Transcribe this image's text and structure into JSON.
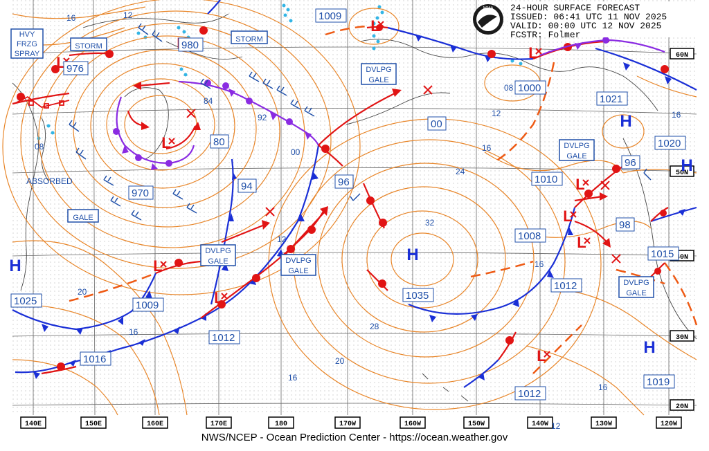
{
  "header": {
    "title": "24-HOUR SURFACE FORECAST",
    "issued": "ISSUED: 06:41 UTC 11 NOV 2025",
    "valid": "VALID:  00:00 UTC 12 NOV 2025",
    "forecaster": "FCSTR:  Folmer",
    "logo_text": "NOAA"
  },
  "footer": "NWS/NCEP - Ocean Prediction Center - https://ocean.weather.gov",
  "longitudes": [
    "140E",
    "150E",
    "160E",
    "170E",
    "180",
    "170W",
    "160W",
    "150W",
    "140W",
    "130W",
    "120W"
  ],
  "latitudes": [
    "60N",
    "50N",
    "40N",
    "30N",
    "20N"
  ],
  "warnings": [
    {
      "id": "hvy-frzg-spray",
      "lines": [
        "HVY",
        "FRZG",
        "SPRAY"
      ]
    },
    {
      "id": "storm-west",
      "lines": [
        "STORM"
      ]
    },
    {
      "id": "storm-central",
      "lines": [
        "STORM"
      ]
    },
    {
      "id": "gale-west",
      "lines": [
        "GALE"
      ]
    },
    {
      "id": "dvlpg-gale-1",
      "lines": [
        "DVLPG",
        "GALE"
      ]
    },
    {
      "id": "dvlpg-gale-2",
      "lines": [
        "DVLPG",
        "GALE"
      ]
    },
    {
      "id": "dvlpg-gale-3",
      "lines": [
        "DVLPG",
        "GALE"
      ]
    },
    {
      "id": "dvlpg-gale-4",
      "lines": [
        "DVLPG",
        "GALE"
      ]
    },
    {
      "id": "dvlpg-gale-5",
      "lines": [
        "DVLPG",
        "GALE"
      ]
    }
  ],
  "absorbed_text": "ABSORBED",
  "pressure_centers": [
    {
      "type": "H",
      "value": "1025"
    },
    {
      "type": "H",
      "value": "1016"
    },
    {
      "type": "H",
      "value": "1035"
    },
    {
      "type": "H",
      "value": "1021"
    },
    {
      "type": "H",
      "value": "1020"
    },
    {
      "type": "H",
      "value": "1019"
    },
    {
      "type": "L",
      "value": "976"
    },
    {
      "type": "L",
      "value": "980"
    },
    {
      "type": "L",
      "value": "970"
    },
    {
      "type": "L",
      "value": "80"
    },
    {
      "type": "L",
      "value": "1009"
    },
    {
      "type": "L",
      "value": "1009"
    },
    {
      "type": "L",
      "value": "1012"
    },
    {
      "type": "L",
      "value": "1012"
    },
    {
      "type": "L",
      "value": "94"
    },
    {
      "type": "L",
      "value": "96"
    },
    {
      "type": "L",
      "value": "00"
    },
    {
      "type": "L",
      "value": "1000"
    },
    {
      "type": "L",
      "value": "1010"
    },
    {
      "type": "L",
      "value": "1008"
    },
    {
      "type": "L",
      "value": "1012"
    },
    {
      "type": "L",
      "value": "98"
    },
    {
      "type": "L",
      "value": "1015"
    },
    {
      "type": "L",
      "value": "96"
    }
  ],
  "isobar_labels": [
    "16",
    "12",
    "08",
    "20",
    "16",
    "84",
    "92",
    "00",
    "12",
    "16",
    "24",
    "32",
    "28",
    "20",
    "16",
    "08",
    "12",
    "16",
    "16",
    "16",
    "12"
  ],
  "colors": {
    "isobar": "#e8862a",
    "cold_front": "#1a2fd6",
    "warm_front": "#e11414",
    "occluded_front": "#8a2be2",
    "trough": "#ee5a14",
    "label_text": "#1f4fa8",
    "grid": "#555555",
    "ice": "#33b5e5"
  }
}
